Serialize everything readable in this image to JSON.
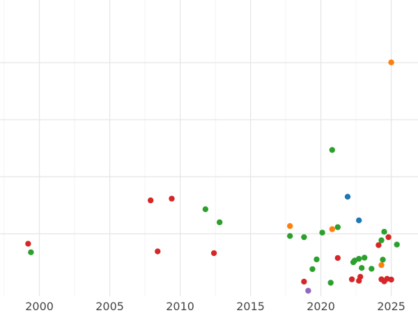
{
  "chart_data": {
    "type": "scatter",
    "title": "",
    "xlabel": "",
    "ylabel": "",
    "xlim": [
      1997.2,
      2026.9
    ],
    "ylim": [
      0,
      10.2
    ],
    "x_ticks": [
      2000,
      2005,
      2010,
      2015,
      2020,
      2025
    ],
    "x_tick_labels": [
      "2000",
      "2005",
      "2010",
      "2015",
      "2020",
      "2025"
    ],
    "y_gridlines": [
      2,
      4,
      6,
      8
    ],
    "y_tick_labels_visible": false,
    "grid": true,
    "legend": "none",
    "colors": {
      "red": "#d62728",
      "green": "#2ca02c",
      "orange": "#ff7f0e",
      "blue": "#1f77b4",
      "purple": "#9467bd"
    },
    "series": [
      {
        "color": "#d62728",
        "points": [
          [
            1999.2,
            1.65
          ],
          [
            2007.9,
            3.17
          ],
          [
            2008.4,
            1.38
          ],
          [
            2009.4,
            3.23
          ],
          [
            2012.4,
            1.32
          ],
          [
            2018.8,
            0.32
          ],
          [
            2021.2,
            1.15
          ],
          [
            2022.2,
            0.4
          ],
          [
            2022.7,
            0.35
          ],
          [
            2022.8,
            0.49
          ],
          [
            2024.1,
            1.6
          ],
          [
            2024.3,
            0.4
          ],
          [
            2024.5,
            0.33
          ],
          [
            2024.7,
            0.42
          ],
          [
            2024.8,
            1.88
          ],
          [
            2025.0,
            0.39
          ]
        ]
      },
      {
        "color": "#2ca02c",
        "points": [
          [
            1999.4,
            1.35
          ],
          [
            2011.8,
            2.86
          ],
          [
            2012.8,
            2.4
          ],
          [
            2017.8,
            1.92
          ],
          [
            2018.8,
            1.88
          ],
          [
            2019.4,
            0.76
          ],
          [
            2019.7,
            1.1
          ],
          [
            2020.1,
            2.04
          ],
          [
            2020.7,
            0.28
          ],
          [
            2020.8,
            4.94
          ],
          [
            2021.2,
            2.23
          ],
          [
            2022.3,
            1.0
          ],
          [
            2022.4,
            1.06
          ],
          [
            2022.7,
            1.12
          ],
          [
            2022.9,
            0.8
          ],
          [
            2023.1,
            1.16
          ],
          [
            2023.6,
            0.77
          ],
          [
            2024.3,
            1.77
          ],
          [
            2024.4,
            1.09
          ],
          [
            2024.5,
            2.07
          ],
          [
            2025.4,
            1.62
          ]
        ]
      },
      {
        "color": "#ff7f0e",
        "points": [
          [
            2017.8,
            2.27
          ],
          [
            2020.8,
            2.16
          ],
          [
            2024.3,
            0.9
          ],
          [
            2025.0,
            8.01
          ]
        ]
      },
      {
        "color": "#1f77b4",
        "points": [
          [
            2021.9,
            3.3
          ],
          [
            2022.7,
            2.47
          ]
        ]
      },
      {
        "color": "#9467bd",
        "points": [
          [
            2019.1,
            0.0
          ]
        ]
      }
    ]
  }
}
